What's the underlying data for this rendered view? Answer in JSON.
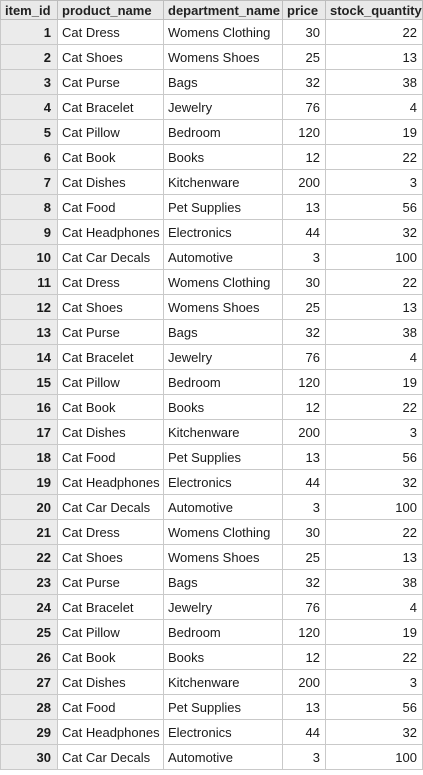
{
  "table": {
    "columns": [
      "item_id",
      "product_name",
      "department_name",
      "price",
      "stock_quantity"
    ],
    "rows": [
      [
        "1",
        "Cat Dress",
        "Womens Clothing",
        "30",
        "22"
      ],
      [
        "2",
        "Cat Shoes",
        "Womens Shoes",
        "25",
        "13"
      ],
      [
        "3",
        "Cat Purse",
        "Bags",
        "32",
        "38"
      ],
      [
        "4",
        "Cat Bracelet",
        "Jewelry",
        "76",
        "4"
      ],
      [
        "5",
        "Cat Pillow",
        "Bedroom",
        "120",
        "19"
      ],
      [
        "6",
        "Cat Book",
        "Books",
        "12",
        "22"
      ],
      [
        "7",
        "Cat Dishes",
        "Kitchenware",
        "200",
        "3"
      ],
      [
        "8",
        "Cat Food",
        "Pet Supplies",
        "13",
        "56"
      ],
      [
        "9",
        "Cat Headphones",
        "Electronics",
        "44",
        "32"
      ],
      [
        "10",
        "Cat Car Decals",
        "Automotive",
        "3",
        "100"
      ],
      [
        "11",
        "Cat Dress",
        "Womens Clothing",
        "30",
        "22"
      ],
      [
        "12",
        "Cat Shoes",
        "Womens Shoes",
        "25",
        "13"
      ],
      [
        "13",
        "Cat Purse",
        "Bags",
        "32",
        "38"
      ],
      [
        "14",
        "Cat Bracelet",
        "Jewelry",
        "76",
        "4"
      ],
      [
        "15",
        "Cat Pillow",
        "Bedroom",
        "120",
        "19"
      ],
      [
        "16",
        "Cat Book",
        "Books",
        "12",
        "22"
      ],
      [
        "17",
        "Cat Dishes",
        "Kitchenware",
        "200",
        "3"
      ],
      [
        "18",
        "Cat Food",
        "Pet Supplies",
        "13",
        "56"
      ],
      [
        "19",
        "Cat Headphones",
        "Electronics",
        "44",
        "32"
      ],
      [
        "20",
        "Cat Car Decals",
        "Automotive",
        "3",
        "100"
      ],
      [
        "21",
        "Cat Dress",
        "Womens Clothing",
        "30",
        "22"
      ],
      [
        "22",
        "Cat Shoes",
        "Womens Shoes",
        "25",
        "13"
      ],
      [
        "23",
        "Cat Purse",
        "Bags",
        "32",
        "38"
      ],
      [
        "24",
        "Cat Bracelet",
        "Jewelry",
        "76",
        "4"
      ],
      [
        "25",
        "Cat Pillow",
        "Bedroom",
        "120",
        "19"
      ],
      [
        "26",
        "Cat Book",
        "Books",
        "12",
        "22"
      ],
      [
        "27",
        "Cat Dishes",
        "Kitchenware",
        "200",
        "3"
      ],
      [
        "28",
        "Cat Food",
        "Pet Supplies",
        "13",
        "56"
      ],
      [
        "29",
        "Cat Headphones",
        "Electronics",
        "44",
        "32"
      ],
      [
        "30",
        "Cat Car Decals",
        "Automotive",
        "3",
        "100"
      ]
    ]
  }
}
